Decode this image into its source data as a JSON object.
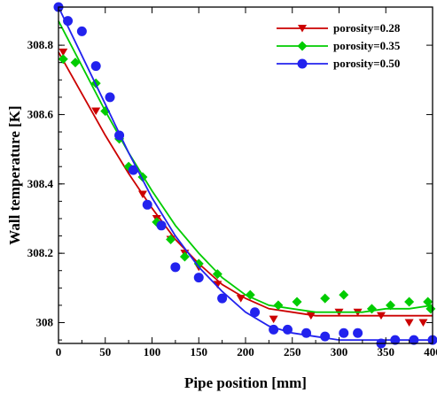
{
  "chart_data": {
    "type": "scatter",
    "title": "",
    "xlabel": "Pipe position [mm]",
    "ylabel": "Wall temperature [K]",
    "xlim": [
      0,
      400
    ],
    "ylim": [
      307.94,
      308.91
    ],
    "x_ticks": [
      0,
      50,
      100,
      150,
      200,
      250,
      300,
      350,
      400
    ],
    "y_ticks": [
      308,
      308.2,
      308.4,
      308.6,
      308.8
    ],
    "grid": false,
    "legend_position": "top-right",
    "series": [
      {
        "name": "porosity=0.28",
        "color": "#cc0000",
        "marker": "triangle-down",
        "x": [
          5,
          40,
          75,
          90,
          105,
          120,
          135,
          150,
          170,
          195,
          230,
          270,
          300,
          320,
          345,
          375,
          390
        ],
        "y": [
          308.78,
          308.61,
          308.44,
          308.37,
          308.3,
          308.24,
          308.2,
          308.16,
          308.11,
          308.07,
          308.01,
          308.02,
          308.03,
          308.03,
          308.02,
          308.0,
          308.0
        ],
        "fit_x": [
          0,
          25,
          50,
          75,
          100,
          125,
          150,
          175,
          200,
          225,
          250,
          275,
          300,
          325,
          350,
          375,
          400
        ],
        "fit_y": [
          308.78,
          308.66,
          308.54,
          308.43,
          308.33,
          308.24,
          308.17,
          308.11,
          308.07,
          308.04,
          308.03,
          308.02,
          308.02,
          308.02,
          308.02,
          308.02,
          308.02
        ]
      },
      {
        "name": "porosity=0.35",
        "color": "#00cc00",
        "marker": "diamond",
        "x": [
          5,
          18,
          40,
          50,
          65,
          75,
          90,
          105,
          120,
          135,
          150,
          170,
          205,
          235,
          255,
          285,
          305,
          335,
          355,
          375,
          395,
          398
        ],
        "y": [
          308.76,
          308.75,
          308.69,
          308.61,
          308.53,
          308.45,
          308.42,
          308.29,
          308.24,
          308.19,
          308.17,
          308.14,
          308.08,
          308.05,
          308.06,
          308.07,
          308.08,
          308.04,
          308.05,
          308.06,
          308.06,
          308.04
        ],
        "fit_x": [
          0,
          25,
          50,
          75,
          100,
          125,
          150,
          175,
          200,
          225,
          250,
          275,
          300,
          325,
          350,
          375,
          400
        ],
        "fit_y": [
          308.87,
          308.74,
          308.61,
          308.49,
          308.38,
          308.28,
          308.2,
          308.13,
          308.08,
          308.05,
          308.04,
          308.03,
          308.03,
          308.03,
          308.04,
          308.04,
          308.05
        ]
      },
      {
        "name": "porosity=0.50",
        "color": "#2222ee",
        "marker": "circle",
        "x": [
          0,
          10,
          25,
          40,
          55,
          65,
          80,
          95,
          110,
          125,
          150,
          175,
          210,
          230,
          245,
          265,
          285,
          305,
          320,
          345,
          360,
          380,
          400
        ],
        "y": [
          308.91,
          308.87,
          308.84,
          308.74,
          308.65,
          308.54,
          308.44,
          308.34,
          308.28,
          308.16,
          308.13,
          308.07,
          308.03,
          307.98,
          307.98,
          307.97,
          307.96,
          307.97,
          307.97,
          307.94,
          307.95,
          307.95,
          307.95
        ],
        "fit_x": [
          0,
          25,
          50,
          75,
          100,
          125,
          150,
          175,
          200,
          225,
          250,
          275,
          300,
          325,
          350,
          375,
          400
        ],
        "fit_y": [
          308.91,
          308.77,
          308.63,
          308.49,
          308.36,
          308.25,
          308.16,
          308.09,
          308.03,
          307.99,
          307.97,
          307.96,
          307.95,
          307.95,
          307.95,
          307.95,
          307.95
        ]
      }
    ]
  }
}
